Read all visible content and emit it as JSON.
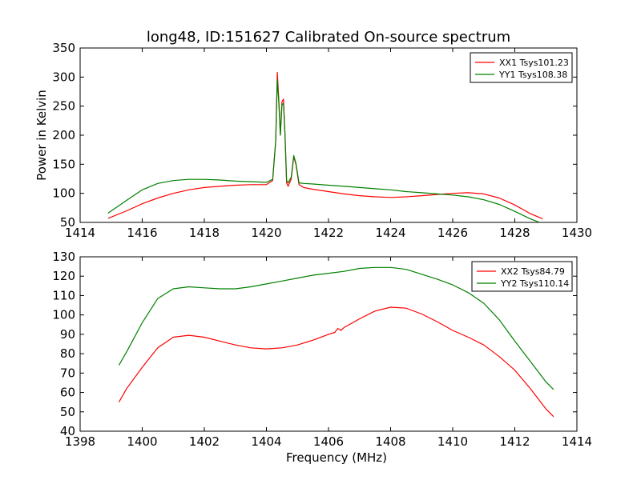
{
  "chart_data": [
    {
      "type": "line",
      "title": "long48, ID:151627 Calibrated On-source spectrum",
      "xlabel": "",
      "ylabel": "Power in Kelvin",
      "xlim": [
        1414,
        1430
      ],
      "ylim": [
        50,
        350
      ],
      "xticks": [
        1414,
        1416,
        1418,
        1420,
        1422,
        1424,
        1426,
        1428,
        1430
      ],
      "yticks": [
        50,
        100,
        150,
        200,
        250,
        300,
        350
      ],
      "legend_position": "top-right",
      "series": [
        {
          "name": "XX1 Tsys101.23",
          "color": "#ff0000",
          "x": [
            1414.9,
            1415.5,
            1416.0,
            1416.5,
            1417.0,
            1417.5,
            1418.0,
            1418.5,
            1419.0,
            1419.5,
            1420.0,
            1420.2,
            1420.3,
            1420.35,
            1420.4,
            1420.45,
            1420.5,
            1420.55,
            1420.6,
            1420.65,
            1420.7,
            1420.8,
            1420.88,
            1420.95,
            1421.05,
            1421.2,
            1421.5,
            1422.0,
            1422.5,
            1423.0,
            1423.5,
            1424.0,
            1424.5,
            1425.0,
            1425.5,
            1426.0,
            1426.5,
            1427.0,
            1427.5,
            1428.0,
            1428.5,
            1428.9
          ],
          "values": [
            57,
            70,
            82,
            92,
            100,
            106,
            110,
            112,
            114,
            115,
            115,
            122,
            190,
            308,
            260,
            200,
            258,
            262,
            200,
            118,
            112,
            125,
            163,
            150,
            115,
            110,
            107,
            103,
            99,
            96,
            94,
            93,
            94,
            96,
            98,
            100,
            101,
            99,
            92,
            80,
            65,
            56
          ]
        },
        {
          "name": "YY1 Tsys108.38",
          "color": "#008000",
          "x": [
            1414.9,
            1415.5,
            1416.0,
            1416.5,
            1417.0,
            1417.5,
            1418.0,
            1418.5,
            1419.0,
            1419.5,
            1420.0,
            1420.2,
            1420.3,
            1420.35,
            1420.4,
            1420.45,
            1420.5,
            1420.55,
            1420.6,
            1420.65,
            1420.7,
            1420.8,
            1420.88,
            1420.95,
            1421.05,
            1421.2,
            1421.5,
            1422.0,
            1422.5,
            1423.0,
            1423.5,
            1424.0,
            1424.5,
            1425.0,
            1425.5,
            1426.0,
            1426.5,
            1427.0,
            1427.5,
            1428.0,
            1428.5,
            1428.8
          ],
          "values": [
            66,
            88,
            106,
            117,
            122,
            124,
            124,
            123,
            121,
            120,
            119,
            124,
            190,
            296,
            255,
            200,
            252,
            255,
            200,
            122,
            118,
            128,
            165,
            152,
            118,
            117,
            116,
            114,
            112,
            110,
            108,
            106,
            103,
            101,
            99,
            97,
            94,
            89,
            81,
            69,
            56,
            50
          ]
        }
      ]
    },
    {
      "type": "line",
      "title": "",
      "xlabel": "Frequency (MHz)",
      "ylabel": "",
      "xlim": [
        1398,
        1414
      ],
      "ylim": [
        40,
        130
      ],
      "xticks": [
        1398,
        1400,
        1402,
        1404,
        1406,
        1408,
        1410,
        1412,
        1414
      ],
      "yticks": [
        40,
        50,
        60,
        70,
        80,
        90,
        100,
        110,
        120,
        130
      ],
      "legend_position": "top-right",
      "series": [
        {
          "name": "XX2 Tsys84.79",
          "color": "#ff0000",
          "x": [
            1399.25,
            1399.5,
            1400.0,
            1400.5,
            1401.0,
            1401.5,
            1402.0,
            1402.5,
            1403.0,
            1403.5,
            1404.0,
            1404.5,
            1405.0,
            1405.5,
            1406.0,
            1406.2,
            1406.3,
            1406.4,
            1406.5,
            1407.0,
            1407.5,
            1408.0,
            1408.5,
            1409.0,
            1409.5,
            1410.0,
            1410.5,
            1411.0,
            1411.5,
            1412.0,
            1412.5,
            1413.0,
            1413.25
          ],
          "values": [
            55,
            62,
            73,
            83,
            88.5,
            89.5,
            88.5,
            86.5,
            84.5,
            83,
            82.5,
            83,
            84.5,
            87,
            90,
            91,
            93,
            92,
            93.5,
            98,
            102,
            104,
            103.5,
            100.5,
            96.5,
            92,
            88.5,
            84.5,
            78.5,
            71.5,
            62,
            51.5,
            47.5
          ]
        },
        {
          "name": "YY2 Tsys110.14",
          "color": "#008000",
          "x": [
            1399.25,
            1399.5,
            1400.0,
            1400.5,
            1401.0,
            1401.5,
            1402.0,
            1402.5,
            1403.0,
            1403.5,
            1404.0,
            1404.5,
            1405.0,
            1405.5,
            1406.0,
            1406.5,
            1407.0,
            1407.5,
            1408.0,
            1408.5,
            1409.0,
            1409.5,
            1410.0,
            1410.5,
            1411.0,
            1411.5,
            1412.0,
            1412.5,
            1413.0,
            1413.25
          ],
          "values": [
            74,
            81,
            96,
            108.5,
            113.5,
            114.5,
            114,
            113.5,
            113.5,
            114.5,
            116,
            117.5,
            119,
            120.5,
            121.5,
            122.5,
            124,
            124.5,
            124.5,
            123.5,
            121,
            118.5,
            115.5,
            111.5,
            106,
            97.5,
            86.5,
            76,
            65.5,
            61.5
          ]
        }
      ]
    }
  ]
}
